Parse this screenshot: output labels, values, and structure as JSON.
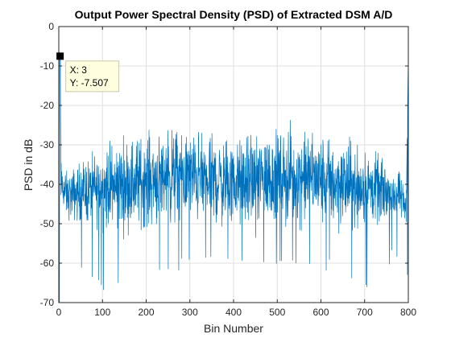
{
  "chart_data": {
    "type": "line",
    "title": "Output Power Spectral Density (PSD) of Extracted DSM A/D",
    "xlabel": "Bin Number",
    "ylabel": "PSD in dB",
    "xlim": [
      0,
      800
    ],
    "ylim": [
      -70,
      0
    ],
    "xticks": [
      "0",
      "100",
      "200",
      "300",
      "400",
      "500",
      "600",
      "700",
      "800"
    ],
    "yticks": [
      "0",
      "-10",
      "-20",
      "-30",
      "-40",
      "-50",
      "-60",
      "-70"
    ],
    "grid": true,
    "series": [
      {
        "color": "#0072bd",
        "envelope": {
          "x": [
            3,
            5,
            20,
            50,
            100,
            150,
            200,
            250,
            300,
            350,
            400,
            450,
            500,
            550,
            600,
            650,
            700,
            750,
            780,
            795,
            800
          ],
          "center": [
            -7.507,
            -40,
            -43,
            -42,
            -41,
            -40,
            -39,
            -38,
            -38,
            -39,
            -40,
            -39,
            -38,
            -38,
            -39,
            -40,
            -41,
            -42,
            -43,
            -46,
            -8
          ],
          "spread": [
            0,
            6,
            6,
            8,
            10,
            12,
            12,
            12,
            12,
            12,
            11,
            12,
            12,
            12,
            12,
            12,
            10,
            8,
            6,
            5,
            0
          ],
          "min": [
            -70,
            -58,
            -58,
            -62,
            -67,
            -67,
            -62,
            -62,
            -62,
            -60,
            -62,
            -62,
            -62,
            -62,
            -62,
            -62,
            -67,
            -62,
            -58,
            -58,
            -70
          ]
        }
      }
    ],
    "datatip": {
      "x_text": "X: 3",
      "y_text": "Y: -7.507",
      "x": 3,
      "y": -7.507
    }
  },
  "colors": {
    "line": "#0072bd",
    "grid": "#dfdfdf",
    "axis": "#262626",
    "datatip_bg": "#ffffe0",
    "datatip_border": "#c9c9a6"
  }
}
